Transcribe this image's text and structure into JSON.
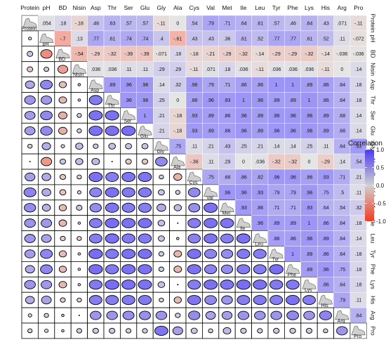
{
  "chart_data": {
    "type": "heatmap",
    "variables": [
      "Protein",
      "pH",
      "BD",
      "Nisin",
      "Asp",
      "Thr",
      "Ser",
      "Glu",
      "Gly",
      "Ala",
      "Cys",
      "Val",
      "Met",
      "Ile",
      "Leu",
      "Tyr",
      "Phe",
      "Lys",
      "His",
      "Arg",
      "Pro"
    ],
    "upper_triangle": "numbers",
    "lower_triangle": "ellipses",
    "diagonal": "density",
    "matrix": [
      [
        1,
        0.054,
        0.18,
        -0.18,
        0.46,
        0.63,
        0.57,
        0.57,
        -0.11,
        0,
        0.54,
        0.79,
        0.71,
        0.64,
        0.61,
        0.57,
        0.46,
        0.64,
        0.43,
        0.071,
        -0.11
      ],
      [
        0.054,
        1,
        -0.7,
        0.13,
        0.77,
        0.61,
        0.74,
        0.74,
        0.4,
        -0.61,
        0.43,
        0.43,
        0.36,
        0.61,
        0.52,
        0.77,
        0.77,
        0.61,
        0.52,
        0.11,
        -0.072
      ],
      [
        0.18,
        -0.7,
        1,
        -0.54,
        -0.29,
        -0.32,
        -0.39,
        -0.39,
        -0.071,
        0.18,
        -0.18,
        -0.21,
        -0.29,
        -0.32,
        -0.14,
        -0.29,
        -0.29,
        -0.32,
        -0.14,
        -0.036,
        -0.036
      ],
      [
        -0.18,
        0.13,
        -0.54,
        1,
        0.036,
        0.036,
        0.11,
        0.11,
        0.29,
        0.29,
        -0.11,
        0.071,
        0.18,
        0.036,
        -0.11,
        0.036,
        0.036,
        0.036,
        -0.11,
        0,
        0.14
      ],
      [
        0.46,
        0.77,
        -0.29,
        0.036,
        1,
        0.89,
        0.96,
        0.96,
        0.14,
        0.32,
        0.96,
        0.79,
        0.71,
        0.86,
        0.86,
        1,
        1,
        0.89,
        0.86,
        0.64,
        0.18
      ],
      [
        0.63,
        0.61,
        -0.32,
        0.036,
        0.89,
        1,
        0.96,
        0.96,
        0.25,
        0,
        0.86,
        0.96,
        0.93,
        1,
        0.96,
        0.89,
        0.89,
        1,
        0.86,
        0.64,
        0.18
      ],
      [
        0.57,
        0.74,
        -0.39,
        0.11,
        0.96,
        0.96,
        1,
        1,
        0.21,
        -0.18,
        0.93,
        0.89,
        0.86,
        0.96,
        0.89,
        0.96,
        0.96,
        0.96,
        0.89,
        0.68,
        0.14
      ],
      [
        0.57,
        0.74,
        -0.39,
        0.11,
        0.96,
        0.96,
        1,
        1,
        0.21,
        -0.18,
        0.93,
        0.89,
        0.86,
        0.96,
        0.89,
        0.96,
        0.96,
        0.96,
        0.89,
        0.68,
        0.14
      ],
      [
        -0.11,
        0.4,
        -0.071,
        0.29,
        0.14,
        0.25,
        0.21,
        0.21,
        1,
        0.75,
        0.11,
        0.21,
        0.43,
        0.25,
        0.21,
        0.14,
        0.14,
        0.25,
        0.11,
        0.64,
        0.93
      ],
      [
        0,
        -0.61,
        0.18,
        0.29,
        0.32,
        0,
        -0.18,
        -0.18,
        0.75,
        1,
        -0.36,
        0.11,
        0.29,
        0,
        0.036,
        -0.32,
        -0.32,
        0,
        -0.29,
        0.14,
        0.54
      ],
      [
        0.54,
        0.43,
        -0.18,
        -0.11,
        0.96,
        0.86,
        0.93,
        0.93,
        0.11,
        -0.36,
        1,
        0.75,
        0.68,
        0.86,
        0.82,
        0.96,
        0.96,
        0.86,
        0.93,
        0.71,
        0.21
      ],
      [
        0.79,
        0.43,
        -0.21,
        0.071,
        0.79,
        0.96,
        0.89,
        0.89,
        0.21,
        0.11,
        0.75,
        1,
        0.96,
        0.96,
        0.93,
        0.79,
        0.79,
        0.96,
        0.75,
        0.5,
        0.11
      ],
      [
        0.71,
        0.36,
        -0.29,
        0.18,
        0.71,
        0.93,
        0.86,
        0.86,
        0.43,
        0.29,
        0.68,
        0.96,
        1,
        0.93,
        0.86,
        0.71,
        0.71,
        0.93,
        0.64,
        0.54,
        0.32
      ],
      [
        0.64,
        0.61,
        -0.32,
        0.036,
        0.86,
        1,
        0.96,
        0.96,
        0.25,
        0,
        0.86,
        0.96,
        0.93,
        1,
        0.96,
        0.89,
        0.89,
        1,
        0.86,
        0.64,
        0.18
      ],
      [
        0.61,
        0.52,
        -0.14,
        -0.11,
        0.86,
        0.96,
        0.89,
        0.89,
        0.21,
        0.036,
        0.82,
        0.93,
        0.86,
        0.96,
        1,
        0.86,
        0.86,
        0.96,
        0.89,
        0.64,
        0.14
      ],
      [
        0.57,
        0.77,
        -0.29,
        0.036,
        1,
        0.89,
        0.96,
        0.96,
        0.14,
        -0.32,
        0.96,
        0.79,
        0.71,
        0.89,
        0.86,
        1,
        1,
        0.89,
        0.86,
        0.64,
        0.18
      ],
      [
        0.46,
        0.77,
        -0.29,
        0.036,
        1,
        0.89,
        0.96,
        0.96,
        0.14,
        -0.32,
        0.96,
        0.79,
        0.71,
        0.89,
        0.86,
        1,
        1,
        0.89,
        0.96,
        0.75,
        0.18
      ],
      [
        0.64,
        0.61,
        -0.32,
        0.036,
        0.89,
        1,
        0.96,
        0.96,
        0.25,
        0,
        0.86,
        0.96,
        0.93,
        1,
        0.96,
        0.89,
        0.89,
        1,
        0.86,
        0.64,
        0.18
      ],
      [
        0.43,
        0.52,
        -0.14,
        -0.11,
        0.86,
        0.86,
        0.89,
        0.89,
        0.11,
        -0.29,
        0.93,
        0.75,
        0.64,
        0.86,
        0.89,
        0.86,
        0.96,
        0.86,
        1,
        0.79,
        0.11
      ],
      [
        0.071,
        0.11,
        -0.036,
        0,
        0.64,
        0.64,
        0.68,
        0.68,
        0.64,
        0.14,
        0.71,
        0.5,
        0.54,
        0.64,
        0.64,
        0.64,
        0.75,
        0.64,
        0.79,
        1,
        0.64
      ],
      [
        -0.11,
        -0.072,
        -0.036,
        0.14,
        0.18,
        0.18,
        0.14,
        0.14,
        0.93,
        0.54,
        0.21,
        0.11,
        0.32,
        0.18,
        0.14,
        0.18,
        0.18,
        0.18,
        0.11,
        0.64,
        1
      ]
    ],
    "legend": {
      "title": "Correlation",
      "ticks": [
        "1.0",
        "0.5",
        "0.0",
        "-0.5",
        "-1.0"
      ],
      "range": [
        -1,
        1
      ],
      "placement": "right"
    },
    "colors": {
      "positive": "#4b3cf0",
      "zero": "#d0d0d0",
      "negative": "#f23a1f"
    }
  }
}
